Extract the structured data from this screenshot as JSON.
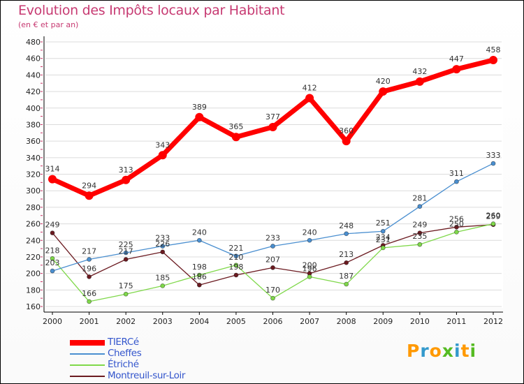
{
  "chart_data": {
    "type": "line",
    "title": "Evolution des Impôts locaux par Habitant",
    "subtitle": "(en € et par an)",
    "xlabel": "",
    "ylabel": "",
    "x": [
      "2000",
      "2001",
      "2002",
      "2003",
      "2004",
      "2005",
      "2006",
      "2007",
      "2008",
      "2009",
      "2010",
      "2011",
      "2012"
    ],
    "ylim": [
      160,
      480
    ],
    "ytick_step": 20,
    "grid": true,
    "legend_position": "bottom-left",
    "series": [
      {
        "name": "TIERCé",
        "color": "#ff0000",
        "values": [
          314,
          294,
          313,
          343,
          389,
          365,
          377,
          412,
          360,
          420,
          432,
          447,
          458
        ]
      },
      {
        "name": "Cheffes",
        "color": "#4a8fd0",
        "values": [
          203,
          217,
          225,
          233,
          240,
          221,
          233,
          240,
          248,
          251,
          281,
          311,
          333
        ]
      },
      {
        "name": "Étriché",
        "color": "#7fd84a",
        "values": [
          218,
          166,
          175,
          185,
          198,
          210,
          170,
          196,
          187,
          231,
          235,
          250,
          260
        ]
      },
      {
        "name": "Montreuil-sur-Loir",
        "color": "#6b1a20",
        "values": [
          249,
          196,
          217,
          226,
          186,
          198,
          207,
          200,
          213,
          234,
          249,
          256,
          259
        ]
      }
    ]
  },
  "logo": {
    "letters": [
      "P",
      "r",
      "o",
      "x",
      "i",
      "t",
      "i"
    ],
    "colors": [
      "#ff9900",
      "#3399cc",
      "#ff9900",
      "#55bb22",
      "#3399cc",
      "#ff9900",
      "#55bb22"
    ]
  }
}
